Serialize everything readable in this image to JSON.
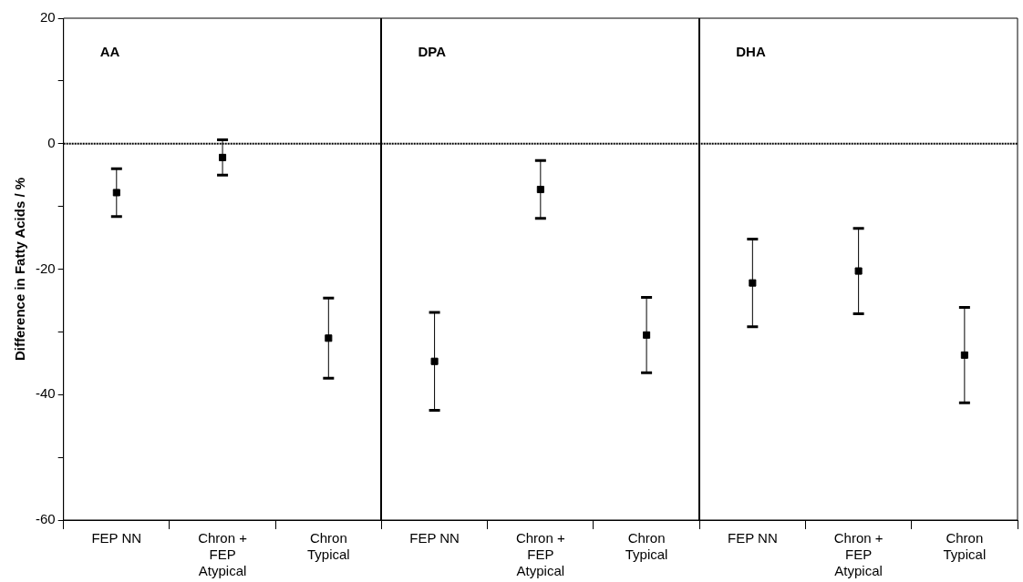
{
  "chart_data": {
    "type": "scatter",
    "ylabel": "Difference in Fatty Acids / %",
    "categories": [
      "FEP NN",
      "Chron + FEP Atypical",
      "Chron Typical",
      "FEP NN",
      "Chron + FEP Atypical",
      "Chron Typical",
      "FEP NN",
      "Chron + FEP Atypical",
      "Chron Typical"
    ],
    "series": [
      {
        "color": "#000000",
        "values": [
          -7.8,
          -2.2,
          -31.0,
          -34.7,
          -7.3,
          -30.5,
          -22.2,
          -20.3,
          -33.7
        ],
        "errors": [
          3.8,
          2.8,
          6.4,
          7.8,
          4.6,
          6.0,
          7.0,
          6.8,
          7.6
        ]
      }
    ],
    "annotations": [
      "AA",
      "DPA",
      "DHA"
    ],
    "ylim": [
      -60,
      20
    ],
    "yticks": [
      20,
      {
        "value": 10,
        "label": null
      },
      0,
      {
        "value": -10,
        "label": null
      },
      -20,
      {
        "value": -30,
        "label": null
      },
      -40,
      {
        "value": -50,
        "label": null
      },
      -60
    ],
    "ref_lines": [
      {
        "axis": "y",
        "value": 0,
        "color": "#000000",
        "line_style": "dotted"
      }
    ],
    "marker": "square",
    "grid": false,
    "legend": false
  }
}
